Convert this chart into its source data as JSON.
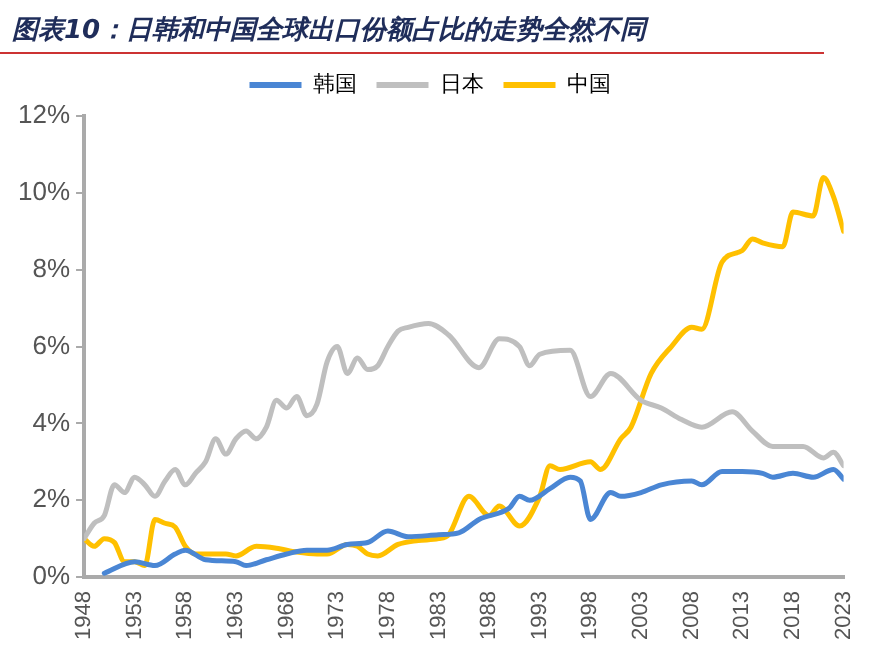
{
  "chart_data": {
    "type": "line",
    "title": "图表10：日韩和中国全球出口份额占比的走势全然不同",
    "xlim": [
      1948,
      2023
    ],
    "xticks": [
      1948,
      1953,
      1958,
      1963,
      1968,
      1973,
      1978,
      1983,
      1988,
      1993,
      1998,
      2003,
      2008,
      2013,
      2018,
      2023
    ],
    "ylim": [
      0,
      12
    ],
    "yticks": [
      {
        "value": 0,
        "label": "0%"
      },
      {
        "value": 2,
        "label": "2%"
      },
      {
        "value": 4,
        "label": "4%"
      },
      {
        "value": 6,
        "label": "6%"
      },
      {
        "value": 8,
        "label": "8%"
      },
      {
        "value": 10,
        "label": "10%"
      },
      {
        "value": 12,
        "label": "12%"
      }
    ],
    "legend": "top",
    "grid": false,
    "marker": "none",
    "series": [
      {
        "name": "韩国",
        "color": "#4a86d4",
        "x": [
          1950,
          1953,
          1955,
          1957,
          1958,
          1960,
          1963,
          1964,
          1966,
          1968,
          1970,
          1972,
          1974,
          1976,
          1978,
          1980,
          1983,
          1985,
          1987,
          1990,
          1991,
          1992,
          1994,
          1996,
          1997,
          1998,
          2000,
          2001,
          2003,
          2005,
          2008,
          2009,
          2011,
          2013,
          2015,
          2016,
          2018,
          2020,
          2022,
          2023
        ],
        "values": [
          0.1,
          0.4,
          0.3,
          0.6,
          0.7,
          0.45,
          0.4,
          0.3,
          0.45,
          0.6,
          0.7,
          0.7,
          0.85,
          0.9,
          1.2,
          1.05,
          1.1,
          1.15,
          1.5,
          1.8,
          2.1,
          2.0,
          2.3,
          2.6,
          2.5,
          1.5,
          2.2,
          2.1,
          2.2,
          2.4,
          2.5,
          2.4,
          2.75,
          2.75,
          2.7,
          2.6,
          2.7,
          2.6,
          2.8,
          2.55
        ]
      },
      {
        "name": "日本",
        "color": "#bfbfbf",
        "x": [
          1948,
          1949,
          1950,
          1951,
          1952,
          1953,
          1954,
          1955,
          1956,
          1957,
          1958,
          1959,
          1960,
          1961,
          1962,
          1963,
          1964,
          1965,
          1966,
          1967,
          1968,
          1969,
          1970,
          1971,
          1972,
          1973,
          1974,
          1975,
          1976,
          1977,
          1978,
          1979,
          1980,
          1982,
          1984,
          1987,
          1989,
          1991,
          1992,
          1993,
          1996,
          1998,
          2000,
          2003,
          2005,
          2007,
          2009,
          2012,
          2014,
          2016,
          2019,
          2021,
          2022,
          2023
        ],
        "values": [
          1.0,
          1.4,
          1.6,
          2.4,
          2.2,
          2.6,
          2.4,
          2.1,
          2.5,
          2.8,
          2.4,
          2.7,
          3.0,
          3.6,
          3.2,
          3.6,
          3.8,
          3.6,
          3.9,
          4.6,
          4.4,
          4.7,
          4.2,
          4.5,
          5.6,
          6.0,
          5.3,
          5.7,
          5.4,
          5.5,
          6.0,
          6.4,
          6.5,
          6.6,
          6.3,
          5.45,
          6.2,
          6.0,
          5.5,
          5.8,
          5.9,
          4.7,
          5.3,
          4.6,
          4.4,
          4.1,
          3.9,
          4.3,
          3.8,
          3.4,
          3.4,
          3.1,
          3.25,
          2.9
        ]
      },
      {
        "name": "中国",
        "color": "#ffc000",
        "x": [
          1948,
          1949,
          1950,
          1951,
          1952,
          1953,
          1954,
          1955,
          1956,
          1957,
          1958,
          1959,
          1960,
          1962,
          1963,
          1965,
          1967,
          1969,
          1971,
          1972,
          1974,
          1975,
          1976,
          1977,
          1979,
          1981,
          1983,
          1984,
          1986,
          1988,
          1989,
          1991,
          1993,
          1994,
          1995,
          1998,
          1999,
          2001,
          2002,
          2004,
          2006,
          2008,
          2009,
          2011,
          2013,
          2014,
          2015,
          2017,
          2018,
          2020,
          2021,
          2022,
          2023
        ],
        "values": [
          1.0,
          0.8,
          1.0,
          0.9,
          0.4,
          0.4,
          0.3,
          1.5,
          1.4,
          1.3,
          0.8,
          0.6,
          0.6,
          0.6,
          0.55,
          0.8,
          0.75,
          0.65,
          0.6,
          0.6,
          0.85,
          0.8,
          0.6,
          0.55,
          0.85,
          0.95,
          1.0,
          1.1,
          2.1,
          1.6,
          1.85,
          1.33,
          2.1,
          2.9,
          2.8,
          3.0,
          2.8,
          3.6,
          3.9,
          5.3,
          6.0,
          6.5,
          6.45,
          8.2,
          8.5,
          8.8,
          8.7,
          8.6,
          9.5,
          9.4,
          10.4,
          9.9,
          9.0
        ]
      }
    ]
  }
}
